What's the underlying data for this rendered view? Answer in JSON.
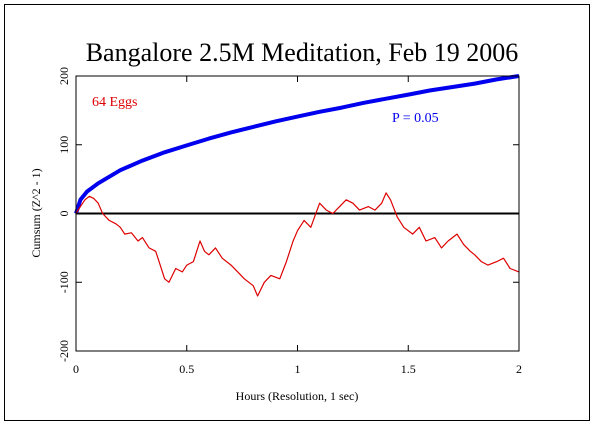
{
  "chart_data": {
    "type": "line",
    "title": "Bangalore 2.5M Meditation, Feb 19 2006",
    "xlabel": "Hours (Resolution, 1 sec)",
    "ylabel": "Cumsum (Z^2 - 1)",
    "xlim": [
      0,
      2
    ],
    "ylim": [
      -200,
      200
    ],
    "x_ticks": [
      "0",
      "0.5",
      "1",
      "1.5",
      "2"
    ],
    "y_ticks": [
      "-200",
      "-100",
      "0",
      "100",
      "200"
    ],
    "annotations": [
      "64 Eggs",
      "P = 0.05"
    ],
    "grid": false,
    "series": [
      {
        "name": "P = 0.05",
        "color": "#0000ee",
        "x": [
          0,
          0.02,
          0.05,
          0.1,
          0.2,
          0.3,
          0.4,
          0.5,
          0.6,
          0.7,
          0.8,
          0.9,
          1.0,
          1.1,
          1.2,
          1.3,
          1.4,
          1.5,
          1.6,
          1.7,
          1.8,
          1.9,
          2.0
        ],
        "y": [
          0,
          20,
          32,
          44,
          63,
          77,
          89,
          99,
          109,
          118,
          126,
          134,
          141,
          148,
          154,
          161,
          167,
          173,
          179,
          184,
          189,
          195,
          200
        ]
      },
      {
        "name": "64 Eggs",
        "color": "#dd0000",
        "x": [
          0,
          0.02,
          0.04,
          0.06,
          0.08,
          0.1,
          0.12,
          0.15,
          0.18,
          0.2,
          0.22,
          0.25,
          0.28,
          0.3,
          0.33,
          0.36,
          0.38,
          0.4,
          0.42,
          0.45,
          0.48,
          0.5,
          0.53,
          0.56,
          0.58,
          0.6,
          0.63,
          0.66,
          0.7,
          0.73,
          0.76,
          0.8,
          0.82,
          0.85,
          0.88,
          0.92,
          0.95,
          0.98,
          1.0,
          1.03,
          1.06,
          1.1,
          1.13,
          1.16,
          1.19,
          1.22,
          1.25,
          1.28,
          1.32,
          1.35,
          1.38,
          1.4,
          1.42,
          1.45,
          1.48,
          1.52,
          1.55,
          1.58,
          1.62,
          1.65,
          1.68,
          1.72,
          1.75,
          1.78,
          1.8,
          1.83,
          1.86,
          1.9,
          1.93,
          1.96,
          2.0
        ],
        "y": [
          0,
          10,
          20,
          25,
          22,
          15,
          0,
          -10,
          -15,
          -20,
          -30,
          -28,
          -40,
          -35,
          -50,
          -55,
          -75,
          -95,
          -100,
          -80,
          -85,
          -75,
          -70,
          -40,
          -55,
          -60,
          -50,
          -65,
          -75,
          -85,
          -95,
          -105,
          -120,
          -100,
          -90,
          -95,
          -70,
          -40,
          -25,
          -10,
          -20,
          15,
          5,
          0,
          10,
          20,
          15,
          5,
          10,
          5,
          15,
          30,
          20,
          -5,
          -20,
          -30,
          -20,
          -40,
          -35,
          -50,
          -40,
          -30,
          -45,
          -55,
          -60,
          -70,
          -75,
          -70,
          -65,
          -80,
          -85
        ]
      }
    ]
  }
}
